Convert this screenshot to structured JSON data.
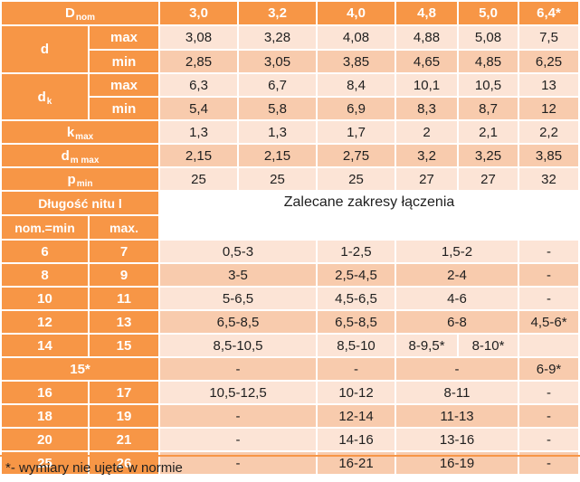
{
  "header": {
    "dnom_base": "D",
    "dnom_sub": "nom",
    "sizes": [
      "3,0",
      "3,2",
      "4,0",
      "4,8",
      "5,0",
      "6,4*"
    ]
  },
  "dims": {
    "d_label": "d",
    "dk_base": "d",
    "dk_sub": "k",
    "max": "max",
    "min": "min",
    "kmax_base": "k",
    "kmax_sub": "max",
    "dm_base": "d",
    "dm_sub": "m max",
    "pmin_base": "p",
    "pmin_sub": "min",
    "d_max": [
      "3,08",
      "3,28",
      "4,08",
      "4,88",
      "5,08",
      "7,5"
    ],
    "d_min": [
      "2,85",
      "3,05",
      "3,85",
      "4,65",
      "4,85",
      "6,25"
    ],
    "dk_max": [
      "6,3",
      "6,7",
      "8,4",
      "10,1",
      "10,5",
      "13"
    ],
    "dk_min": [
      "5,4",
      "5,8",
      "6,9",
      "8,3",
      "8,7",
      "12"
    ],
    "kmax": [
      "1,3",
      "1,3",
      "1,7",
      "2",
      "2,1",
      "2,2"
    ],
    "dm_max": [
      "2,15",
      "2,15",
      "2,75",
      "3,2",
      "3,25",
      "3,85"
    ],
    "pmin": [
      "25",
      "25",
      "25",
      "27",
      "27",
      "32"
    ]
  },
  "grip": {
    "length_label": "Długość nitu l",
    "range_label": "Zalecane zakresy łączenia",
    "nom_label": "nom.=min",
    "max_label": "max.",
    "rows": [
      {
        "nom": "6",
        "max": "7",
        "a": "0,5-3",
        "b": "1-2,5",
        "c": "1,5-2",
        "e": "-"
      },
      {
        "nom": "8",
        "max": "9",
        "a": "3-5",
        "b": "2,5-4,5",
        "c": "2-4",
        "e": "-"
      },
      {
        "nom": "10",
        "max": "11",
        "a": "5-6,5",
        "b": "4,5-6,5",
        "c": "4-6",
        "e": "-"
      },
      {
        "nom": "12",
        "max": "13",
        "a": "6,5-8,5",
        "b": "6,5-8,5",
        "c": "6-8",
        "e": "4,5-6*"
      },
      {
        "nom": "14",
        "max": "15",
        "a": "8,5-10,5",
        "b": "8,5-10",
        "c1": "8-9,5*",
        "c2": "8-10*",
        "e": ""
      },
      {
        "nom": "15*",
        "a": "-",
        "b": "-",
        "c": "-",
        "e": "6-9*"
      },
      {
        "nom": "16",
        "max": "17",
        "a": "10,5-12,5",
        "b": "10-12",
        "c": "8-11",
        "e": "-"
      },
      {
        "nom": "18",
        "max": "19",
        "a": "-",
        "b": "12-14",
        "c": "11-13",
        "e": "-"
      },
      {
        "nom": "20",
        "max": "21",
        "a": "-",
        "b": "14-16",
        "c": "13-16",
        "e": "-"
      },
      {
        "nom": "25",
        "max": "26",
        "a": "-",
        "b": "16-21",
        "c": "16-19",
        "e": "-"
      }
    ]
  },
  "footnote": "*- wymiary nie ujęte w normie"
}
